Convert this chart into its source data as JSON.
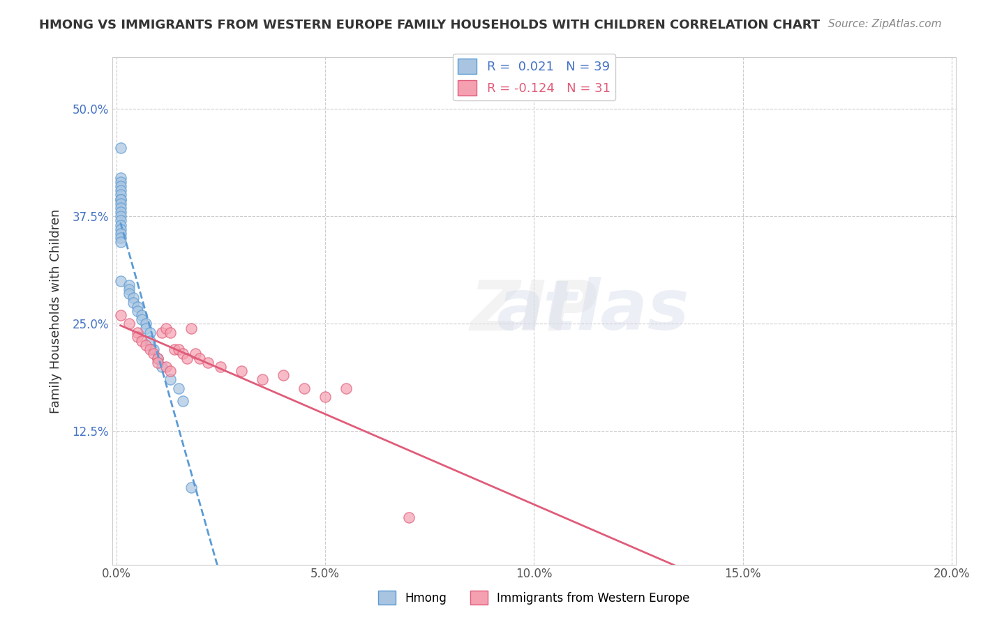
{
  "title": "HMONG VS IMMIGRANTS FROM WESTERN EUROPE FAMILY HOUSEHOLDS WITH CHILDREN CORRELATION CHART",
  "source": "Source: ZipAtlas.com",
  "xlabel": "",
  "ylabel": "Family Households with Children",
  "background_color": "#ffffff",
  "grid_color": "#cccccc",
  "hmong_x": [
    0.001,
    0.001,
    0.001,
    0.001,
    0.001,
    0.001,
    0.001,
    0.001,
    0.001,
    0.001,
    0.001,
    0.001,
    0.001,
    0.001,
    0.001,
    0.001,
    0.001,
    0.001,
    0.001,
    0.003,
    0.003,
    0.003,
    0.004,
    0.004,
    0.005,
    0.005,
    0.006,
    0.006,
    0.007,
    0.007,
    0.008,
    0.008,
    0.009,
    0.01,
    0.011,
    0.013,
    0.015,
    0.016,
    0.018
  ],
  "hmong_y": [
    0.455,
    0.42,
    0.415,
    0.41,
    0.405,
    0.4,
    0.395,
    0.395,
    0.39,
    0.385,
    0.38,
    0.375,
    0.37,
    0.365,
    0.36,
    0.355,
    0.35,
    0.345,
    0.3,
    0.295,
    0.29,
    0.285,
    0.28,
    0.275,
    0.27,
    0.265,
    0.26,
    0.255,
    0.25,
    0.245,
    0.24,
    0.23,
    0.22,
    0.21,
    0.2,
    0.185,
    0.175,
    0.16,
    0.06
  ],
  "west_eu_x": [
    0.001,
    0.003,
    0.005,
    0.005,
    0.006,
    0.007,
    0.008,
    0.009,
    0.01,
    0.01,
    0.011,
    0.012,
    0.012,
    0.013,
    0.013,
    0.014,
    0.015,
    0.016,
    0.017,
    0.018,
    0.019,
    0.02,
    0.022,
    0.025,
    0.03,
    0.035,
    0.04,
    0.045,
    0.05,
    0.055,
    0.07
  ],
  "west_eu_y": [
    0.26,
    0.25,
    0.24,
    0.235,
    0.23,
    0.225,
    0.22,
    0.215,
    0.21,
    0.205,
    0.24,
    0.245,
    0.2,
    0.24,
    0.195,
    0.22,
    0.22,
    0.215,
    0.21,
    0.245,
    0.215,
    0.21,
    0.205,
    0.2,
    0.195,
    0.185,
    0.19,
    0.175,
    0.165,
    0.175,
    0.025
  ],
  "hmong_R": 0.021,
  "hmong_N": 39,
  "west_eu_R": -0.124,
  "west_eu_N": 31,
  "hmong_color": "#a8c4e0",
  "west_eu_color": "#f4a0b0",
  "hmong_line_color": "#5b9bd5",
  "west_eu_line_color": "#e05c7a",
  "legend_text_color": "#4472c4",
  "xlim": [
    -0.001,
    0.201
  ],
  "ylim": [
    -0.03,
    0.56
  ],
  "xticks": [
    0.0,
    0.05,
    0.1,
    0.15,
    0.2
  ],
  "xtick_labels": [
    "0.0%",
    "5.0%",
    "10.0%",
    "15.0%",
    "20.0%"
  ],
  "yticks": [
    0.125,
    0.25,
    0.375,
    0.5
  ],
  "ytick_labels": [
    "12.5%",
    "25.0%",
    "37.5%",
    "50.0%"
  ],
  "watermark": "ZIPatlas"
}
